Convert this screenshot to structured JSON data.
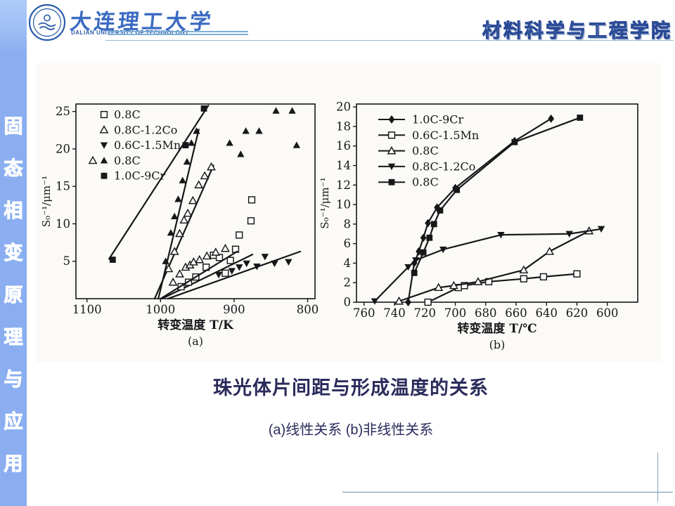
{
  "page": {
    "background": "#ffffff",
    "accent_blue": "#8aaef0"
  },
  "sidebar": {
    "chars": [
      "固",
      "态",
      "相",
      "变",
      "原",
      "理",
      "与",
      "应",
      "用"
    ]
  },
  "header": {
    "university_cn": "大连理工大学",
    "university_en": "DALIAN UNIVERSITY OF TECHNOLOGY",
    "department": "材料科学与工程学院",
    "logo_icon": "university-emblem-icon"
  },
  "caption": {
    "title": "珠光体片间距与形成温度的关系",
    "subtitle": "(a)线性关系 (b)非线性关系",
    "color": "#2b2b5c"
  },
  "chart_data": [
    {
      "id": "a",
      "type": "scatter",
      "panel_label": "(a)",
      "xlabel": "转变温度 T/K",
      "ylabel": "S₀⁻¹/μm⁻¹",
      "x_reversed": true,
      "xlim": [
        1115,
        790
      ],
      "ylim": [
        0,
        26
      ],
      "xticks": [
        1100,
        1000,
        900,
        800
      ],
      "yticks": [
        5,
        10,
        15,
        20,
        25
      ],
      "grid": false,
      "legend_position": "top-left",
      "legend": [
        {
          "markers": [
            "open-square"
          ],
          "label": "0.8C"
        },
        {
          "markers": [
            "open-triangle"
          ],
          "label": "0.8C-1.2Co"
        },
        {
          "markers": [
            "filled-triangle-down"
          ],
          "label": "0.6C-1.5Mn"
        },
        {
          "markers": [
            "open-triangle",
            "filled-triangle-up"
          ],
          "label": "0.8C"
        },
        {
          "markers": [
            "filled-square"
          ],
          "label": "1.0C-9Cr"
        }
      ],
      "series": [
        {
          "name": "0.6C-1.5Mn",
          "marker": "filled-triangle-down",
          "fit_line": [
            [
              990,
              0
            ],
            [
              810,
              6.3
            ]
          ],
          "points": [
            [
              921,
              3.2
            ],
            [
              903,
              3.7
            ],
            [
              893,
              4.2
            ],
            [
              883,
              4.7
            ],
            [
              869,
              4.3
            ],
            [
              858,
              5.6
            ],
            [
              845,
              4.7
            ],
            [
              826,
              4.9
            ]
          ]
        },
        {
          "name": "0.8C",
          "marker": "open-square",
          "fit_line": [
            [
              998,
              0
            ],
            [
              875,
              5.9
            ]
          ],
          "points": [
            [
              972,
              1.6
            ],
            [
              962,
              2.2
            ],
            [
              952,
              2.9
            ],
            [
              938,
              4.2
            ],
            [
              928,
              5.8
            ],
            [
              920,
              5.5
            ],
            [
              912,
              3.4
            ],
            [
              905,
              5.1
            ],
            [
              898,
              6.6
            ],
            [
              893,
              8.5
            ],
            [
              877,
              10.4
            ],
            [
              876,
              13.2
            ]
          ]
        },
        {
          "name": "0.8C-1.2Co",
          "marker": "open-triangle",
          "fit_line": [
            [
              1000,
              0
            ],
            [
              896,
              6.3
            ]
          ],
          "points": [
            [
              983,
              2.2
            ],
            [
              974,
              3.3
            ],
            [
              966,
              4.2
            ],
            [
              960,
              4.5
            ],
            [
              955,
              4.9
            ],
            [
              947,
              5.2
            ],
            [
              937,
              5.7
            ],
            [
              925,
              6.2
            ],
            [
              912,
              6.7
            ]
          ]
        },
        {
          "name": "0.8C",
          "marker": "open-triangle",
          "fit_line": [
            [
              1008,
              0
            ],
            [
              928,
              17.8
            ]
          ],
          "points": [
            [
              989,
              4
            ],
            [
              981,
              6.3
            ],
            [
              974,
              8.7
            ],
            [
              968,
              10.5
            ],
            [
              963,
              11.4
            ],
            [
              956,
              13.1
            ],
            [
              948,
              15.2
            ],
            [
              940,
              16.4
            ],
            [
              931,
              17.6
            ]
          ]
        },
        {
          "name": "0.8C",
          "marker": "filled-triangle-up",
          "fit_line": [
            [
              1003,
              0
            ],
            [
              948,
              22.6
            ]
          ],
          "points": [
            [
              993,
              5
            ],
            [
              986,
              8.8
            ],
            [
              981,
              11
            ],
            [
              976,
              13.3
            ],
            [
              970,
              15.8
            ],
            [
              964,
              18.3
            ],
            [
              958,
              20.8
            ],
            [
              951,
              22.4
            ],
            [
              906,
              20.8
            ],
            [
              891,
              19.3
            ],
            [
              884,
              22.4
            ],
            [
              866,
              22.4
            ],
            [
              843,
              25.1
            ],
            [
              821,
              25.1
            ],
            [
              815,
              20.5
            ]
          ]
        },
        {
          "name": "1.0C-9Cr",
          "marker": "filled-square",
          "fit_line": [
            [
              1070,
              5.3
            ],
            [
              935,
              25.8
            ]
          ],
          "points": [
            [
              1065,
              5.2
            ],
            [
              966,
              20.5
            ],
            [
              941,
              25.4
            ]
          ]
        }
      ]
    },
    {
      "id": "b",
      "type": "line",
      "panel_label": "(b)",
      "xlabel": "转变温度 T/℃",
      "ylabel": "S₀⁻¹/μm⁻¹",
      "x_reversed": true,
      "xlim": [
        765,
        580
      ],
      "ylim": [
        0,
        20.3
      ],
      "xticks": [
        760,
        740,
        720,
        700,
        680,
        660,
        640,
        620,
        600
      ],
      "yticks": [
        0,
        2,
        4,
        6,
        8,
        10,
        12,
        14,
        16,
        18,
        20
      ],
      "grid": false,
      "legend_position": "top-left",
      "legend": [
        {
          "markers": [
            "filled-diamond"
          ],
          "label": "1.0C-9Cr"
        },
        {
          "markers": [
            "open-square"
          ],
          "label": "0.6C-1.5Mn"
        },
        {
          "markers": [
            "open-triangle"
          ],
          "label": "0.8C"
        },
        {
          "markers": [
            "filled-triangle-down"
          ],
          "label": "0.8C-1.2Co"
        },
        {
          "markers": [
            "filled-square"
          ],
          "label": "0.8C"
        }
      ],
      "series": [
        {
          "name": "0.6C-1.5Mn",
          "marker": "open-square",
          "connect": true,
          "points": [
            [
              718,
              0
            ],
            [
              698,
              1.5
            ],
            [
              694,
              1.7
            ],
            [
              678,
              2.1
            ],
            [
              655,
              2.4
            ],
            [
              642,
              2.6
            ],
            [
              620,
              2.9
            ]
          ]
        },
        {
          "name": "0.8C",
          "marker": "open-triangle",
          "connect": true,
          "points": [
            [
              737,
              0.1
            ],
            [
              711,
              1.5
            ],
            [
              701,
              1.7
            ],
            [
              685,
              2.1
            ],
            [
              655,
              3.3
            ],
            [
              638,
              5.2
            ],
            [
              612,
              7.3
            ]
          ]
        },
        {
          "name": "0.8C-1.2Co",
          "marker": "filled-triangle-down",
          "connect": true,
          "points": [
            [
              753,
              0.1
            ],
            [
              731,
              3.6
            ],
            [
              726,
              4.3
            ],
            [
              708,
              5.4
            ],
            [
              670,
              6.9
            ],
            [
              625,
              7.0
            ],
            [
              604,
              7.5
            ]
          ]
        },
        {
          "name": "1.0C-9Cr",
          "marker": "filled-diamond",
          "connect": true,
          "points": [
            [
              731,
              0
            ],
            [
              727,
              4
            ],
            [
              724,
              5.2
            ],
            [
              721,
              6.6
            ],
            [
              718,
              8.1
            ],
            [
              712,
              9.7
            ],
            [
              700,
              11.7
            ],
            [
              661,
              16.5
            ],
            [
              637,
              18.8
            ]
          ]
        },
        {
          "name": "0.8C",
          "marker": "filled-square",
          "connect": true,
          "points": [
            [
              727,
              3
            ],
            [
              721,
              5.1
            ],
            [
              717,
              6.6
            ],
            [
              714,
              8
            ],
            [
              710,
              9.4
            ],
            [
              699,
              11.5
            ],
            [
              661,
              16.4
            ],
            [
              618,
              18.9
            ]
          ]
        }
      ]
    }
  ]
}
